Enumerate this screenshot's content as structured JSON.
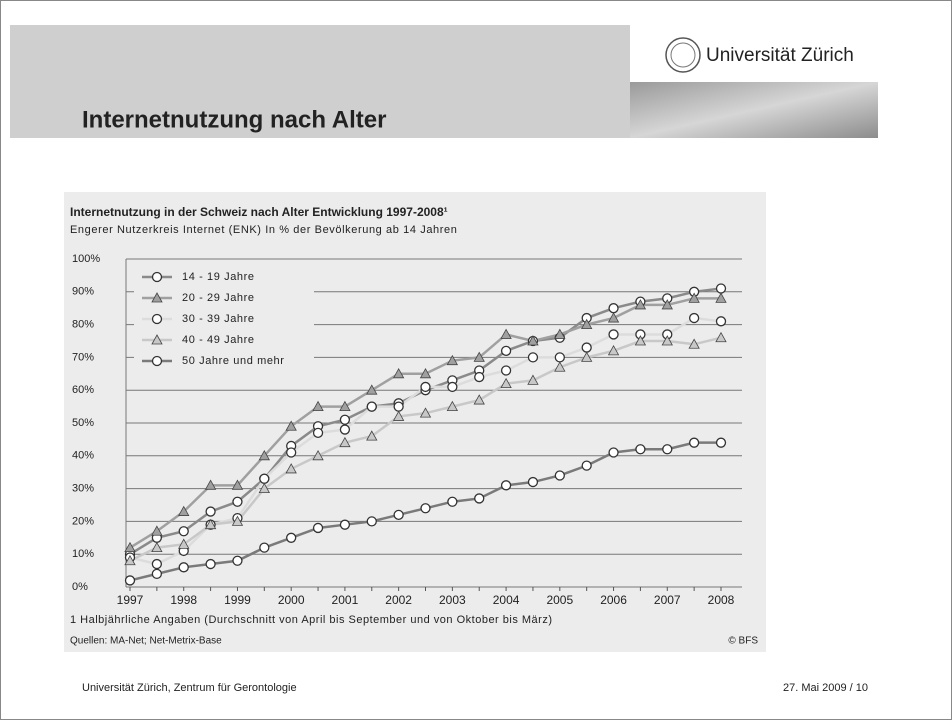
{
  "header": {
    "title": "Internetnutzung nach Alter",
    "logo_text": "Universität Zürich"
  },
  "chart_data": {
    "type": "line",
    "title": "Internetnutzung in der Schweiz nach Alter Entwicklung 1997-2008¹",
    "subtitle": "Engerer Nutzerkreis Internet (ENK) In % der Bevölkerung ab 14 Jahren",
    "categories": [
      "1997",
      null,
      "1998",
      null,
      "1999",
      null,
      "2000",
      null,
      "2001",
      null,
      "2002",
      null,
      "2003",
      null,
      "2004",
      null,
      "2005",
      null,
      "2006",
      null,
      "2007",
      null,
      "2008"
    ],
    "series": [
      {
        "name": "14 - 19 Jahre",
        "color": "#8a8a8a",
        "marker": "circle",
        "values": [
          10,
          15,
          17,
          23,
          26,
          33,
          43,
          49,
          51,
          55,
          56,
          60,
          63,
          66,
          72,
          75,
          76,
          82,
          85,
          87,
          88,
          90,
          91
        ]
      },
      {
        "name": "20 - 29 Jahre",
        "color": "#a0a0a0",
        "marker": "triangle",
        "values": [
          12,
          17,
          23,
          31,
          31,
          40,
          49,
          55,
          55,
          60,
          65,
          65,
          69,
          70,
          77,
          75,
          77,
          80,
          82,
          86,
          86,
          88,
          88
        ]
      },
      {
        "name": "30 - 39 Jahre",
        "color": "#dcdcdc",
        "marker": "circle",
        "values": [
          9,
          7,
          11,
          19,
          21,
          33,
          41,
          47,
          48,
          55,
          55,
          61,
          61,
          64,
          66,
          70,
          70,
          73,
          77,
          77,
          77,
          82,
          81
        ]
      },
      {
        "name": "40 - 49 Jahre",
        "color": "#c8c8c8",
        "marker": "triangle",
        "values": [
          8,
          12,
          13,
          19,
          20,
          30,
          36,
          40,
          44,
          46,
          52,
          53,
          55,
          57,
          62,
          63,
          67,
          70,
          72,
          75,
          75,
          74,
          76
        ]
      },
      {
        "name": "50 Jahre und mehr",
        "color": "#7a7a7a",
        "marker": "circle",
        "values": [
          2,
          4,
          6,
          7,
          8,
          12,
          15,
          18,
          19,
          20,
          22,
          24,
          26,
          27,
          31,
          32,
          34,
          37,
          41,
          42,
          42,
          44,
          44
        ]
      }
    ],
    "ylim": [
      0,
      100
    ],
    "yticks": [
      {
        "value": 0,
        "label": "0%"
      },
      {
        "value": 10,
        "label": "10%"
      },
      {
        "value": 20,
        "label": "20%"
      },
      {
        "value": 30,
        "label": "30%"
      },
      {
        "value": 40,
        "label": "40%"
      },
      {
        "value": 50,
        "label": "50%"
      },
      {
        "value": 60,
        "label": "60%"
      },
      {
        "value": 70,
        "label": "70%"
      },
      {
        "value": 80,
        "label": "80%"
      },
      {
        "value": 90,
        "label": "90%"
      },
      {
        "value": 100,
        "label": "100%"
      }
    ],
    "grid": true,
    "footnote": "1  Halbjährliche Angaben (Durchschnitt von April bis September und von Oktober bis März)",
    "source": "Quellen: MA-Net; Net-Metrix-Base",
    "copyright": "© BFS"
  },
  "footer": {
    "left": "Universität Zürich, Zentrum für Gerontologie",
    "right": "27. Mai 2009  /  10"
  }
}
